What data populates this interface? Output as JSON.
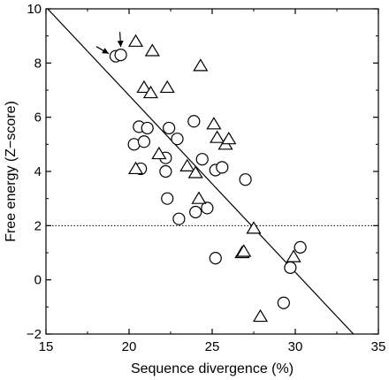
{
  "chart_data": {
    "type": "scatter",
    "xlabel": "Sequence divergence (%)",
    "ylabel": "Free energy (Z−score)",
    "xlim": [
      15,
      35
    ],
    "ylim": [
      -2,
      10
    ],
    "xticks": [
      "15",
      "20",
      "25",
      "30",
      "35"
    ],
    "yticks": [
      "−2",
      "0",
      "2",
      "4",
      "6",
      "8",
      "10"
    ],
    "grid": false,
    "legend": "none",
    "series": [
      {
        "marker": "circle",
        "points": [
          [
            19.2,
            8.25
          ],
          [
            19.5,
            8.3
          ],
          [
            20.6,
            5.65
          ],
          [
            21.1,
            5.6
          ],
          [
            20.3,
            5.0
          ],
          [
            20.9,
            5.1
          ],
          [
            20.7,
            4.1
          ],
          [
            22.4,
            5.6
          ],
          [
            22.9,
            5.2
          ],
          [
            22.2,
            4.5
          ],
          [
            22.2,
            4.0
          ],
          [
            22.3,
            3.0
          ],
          [
            23.0,
            2.25
          ],
          [
            23.9,
            5.85
          ],
          [
            24.4,
            4.45
          ],
          [
            24.0,
            2.5
          ],
          [
            24.7,
            2.65
          ],
          [
            25.2,
            4.05
          ],
          [
            25.6,
            4.15
          ],
          [
            27.0,
            3.7
          ],
          [
            25.2,
            0.8
          ],
          [
            29.3,
            -0.85
          ],
          [
            29.7,
            0.45
          ],
          [
            30.3,
            1.2
          ]
        ]
      },
      {
        "marker": "triangle",
        "points": [
          [
            20.4,
            8.8
          ],
          [
            21.4,
            8.45
          ],
          [
            20.9,
            7.1
          ],
          [
            21.3,
            6.9
          ],
          [
            22.3,
            7.1
          ],
          [
            24.3,
            7.9
          ],
          [
            21.8,
            4.65
          ],
          [
            20.4,
            4.1
          ],
          [
            23.5,
            4.2
          ],
          [
            24.2,
            3.0
          ],
          [
            24.0,
            3.95
          ],
          [
            25.1,
            5.75
          ],
          [
            25.3,
            5.25
          ],
          [
            25.8,
            5.0
          ],
          [
            26.0,
            5.2
          ],
          [
            26.8,
            1.0
          ],
          [
            26.9,
            1.05
          ],
          [
            27.5,
            1.9
          ],
          [
            27.9,
            -1.35
          ],
          [
            29.9,
            0.85
          ]
        ]
      }
    ],
    "regression_line": {
      "x": [
        15.1,
        33.5
      ],
      "y": [
        10.0,
        -2.0
      ]
    },
    "reference_line": {
      "y": 2.0,
      "style": "dotted"
    },
    "annotations": [
      {
        "type": "arrow",
        "target": [
          19.2,
          8.25
        ],
        "direction": "from-upper-left"
      },
      {
        "type": "arrow",
        "target": [
          19.5,
          8.3
        ],
        "direction": "from-above"
      }
    ]
  }
}
